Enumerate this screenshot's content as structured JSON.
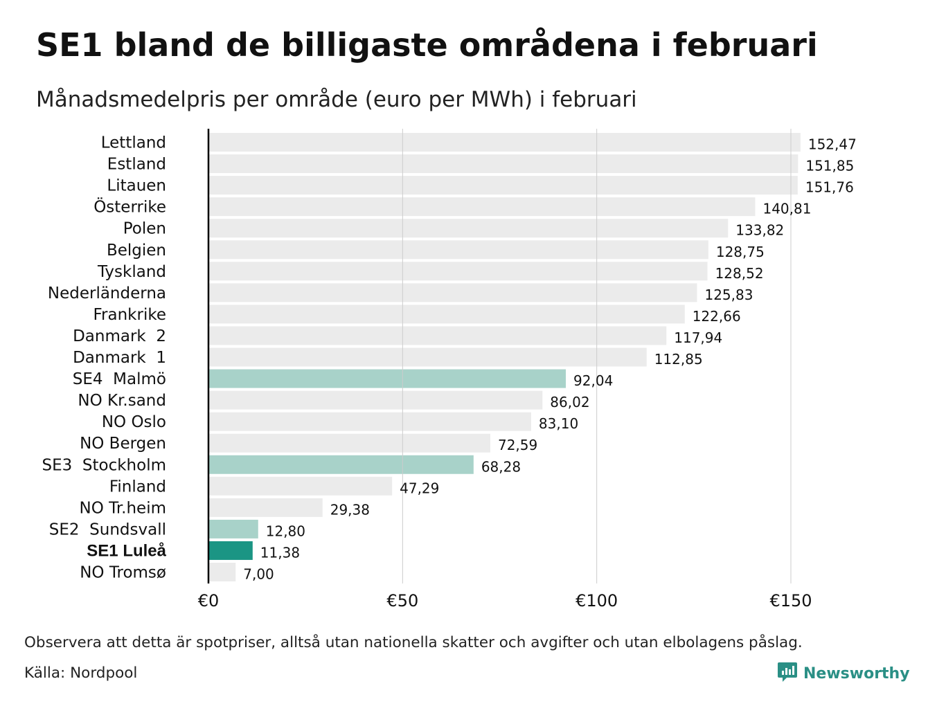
{
  "title": "SE1 bland de billigaste områdena i februari",
  "subtitle": "Månadsmedelpris per område (euro per MWh) i februari",
  "note": "Observera att detta är spotpriser, alltså utan nationella skatter och avgifter och utan elbolagens påslag.",
  "source": "Källa: Nordpool",
  "brand": {
    "name": "Newsworthy",
    "icon": "newsworthy-logo-icon"
  },
  "colors": {
    "default_bar": "#ebebeb",
    "swedish_bar": "#a8d2c9",
    "highlight_bar": "#1b9584",
    "grid": "#cccccc",
    "axis": "#000000",
    "brand": "#2a8f85"
  },
  "chart_data": {
    "type": "bar",
    "orientation": "horizontal",
    "categories": [
      "Lettland",
      "Estland",
      "Litauen",
      "Österrike",
      "Polen",
      "Belgien",
      "Tyskland",
      "Nederländerna",
      "Frankrike",
      "Danmark  2",
      "Danmark  1",
      "SE4  Malmö",
      "NO Kr.sand",
      "NO Oslo",
      "NO Bergen",
      "SE3  Stockholm",
      "Finland",
      "NO Tr.heim",
      "SE2  Sundsvall",
      "SE1 Luleå",
      "NO Tromsø"
    ],
    "values": [
      152.47,
      151.85,
      151.76,
      140.81,
      133.82,
      128.75,
      128.52,
      125.83,
      122.66,
      117.94,
      112.85,
      92.04,
      86.02,
      83.1,
      72.59,
      68.28,
      47.29,
      29.38,
      12.8,
      11.38,
      7.0
    ],
    "value_labels": [
      "152,47",
      "151,85",
      "151,76",
      "140,81",
      "133,82",
      "128,75",
      "128,52",
      "125,83",
      "122,66",
      "117,94",
      "112,85",
      "92,04",
      "86,02",
      "83,10",
      "72,59",
      "68,28",
      "47,29",
      "29,38",
      "12,80",
      "11,38",
      "7,00"
    ],
    "bar_style": [
      "default",
      "default",
      "default",
      "default",
      "default",
      "default",
      "default",
      "default",
      "default",
      "default",
      "default",
      "swedish",
      "default",
      "default",
      "default",
      "swedish",
      "default",
      "default",
      "swedish",
      "highlight",
      "default"
    ],
    "bold_category": "SE1 Luleå",
    "xticks": [
      0,
      50,
      100,
      150
    ],
    "xtick_labels": [
      "€0",
      "€50",
      "€100",
      "€150"
    ],
    "xlim": [
      0,
      160
    ],
    "grid": true,
    "xlabel": "",
    "ylabel": ""
  }
}
